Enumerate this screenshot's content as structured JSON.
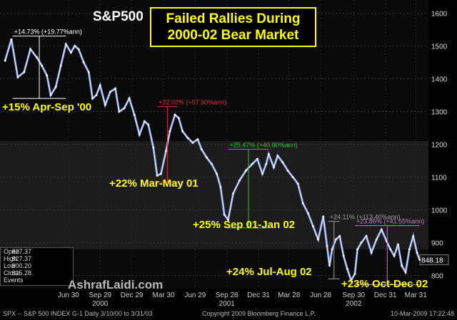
{
  "chart_data": {
    "type": "line",
    "title": "Failed Rallies During 2000-02 Bear Market",
    "title_lines": [
      "Failed Rallies During",
      "2000-02 Bear Market"
    ],
    "index_name": "S&P500",
    "ylim": [
      760,
      1640
    ],
    "yticks": [
      800,
      900,
      1000,
      1100,
      1200,
      1300,
      1400,
      1500,
      1600
    ],
    "last_value": "848.18",
    "x_tick_labels": [
      {
        "t": 0.5,
        "label": "Jun 30"
      },
      {
        "t": 0.75,
        "label": "Sep 29"
      },
      {
        "t": 1.0,
        "label": "Dec 29"
      },
      {
        "t": 1.25,
        "label": "Mar 30"
      },
      {
        "t": 1.5,
        "label": "Jun 29"
      },
      {
        "t": 1.75,
        "label": "Sep 28"
      },
      {
        "t": 2.0,
        "label": "Dec 31"
      },
      {
        "t": 2.24,
        "label": "Mar 28"
      },
      {
        "t": 2.49,
        "label": "Jun 28"
      },
      {
        "t": 2.75,
        "label": "Sep 30"
      },
      {
        "t": 3.0,
        "label": "Dec 31"
      },
      {
        "t": 3.24,
        "label": "Mar 31"
      }
    ],
    "year_labels": [
      {
        "t": 0.75,
        "label": "2000"
      },
      {
        "t": 1.75,
        "label": "2001"
      },
      {
        "t": 2.75,
        "label": "2002"
      }
    ],
    "series": [
      {
        "x": [
          0.0,
          0.05,
          0.1,
          0.15,
          0.2,
          0.25,
          0.29,
          0.33,
          0.36,
          0.4,
          0.44,
          0.48,
          0.52,
          0.55,
          0.58,
          0.62,
          0.66,
          0.69,
          0.72,
          0.75,
          0.79,
          0.83,
          0.87,
          0.9,
          0.94,
          0.98,
          1.02,
          1.06,
          1.1,
          1.13,
          1.17,
          1.2,
          1.23,
          1.27,
          1.3,
          1.34,
          1.37,
          1.4,
          1.44,
          1.48,
          1.52,
          1.55,
          1.59,
          1.63,
          1.67,
          1.7,
          1.73,
          1.76,
          1.8,
          1.85,
          1.9,
          1.95,
          1.99,
          2.03,
          2.06,
          2.08,
          2.12,
          2.15,
          2.19,
          2.23,
          2.27,
          2.31,
          2.35,
          2.39,
          2.43,
          2.47,
          2.51,
          2.54,
          2.56,
          2.58,
          2.61,
          2.64,
          2.67,
          2.7,
          2.73,
          2.76,
          2.78,
          2.81,
          2.85,
          2.89,
          2.93,
          2.97,
          3.01,
          3.04,
          3.07,
          3.1,
          3.13,
          3.16,
          3.19,
          3.22,
          3.25,
          3.27
        ],
        "y": [
          1455,
          1520,
          1405,
          1420,
          1490,
          1465,
          1440,
          1410,
          1350,
          1375,
          1440,
          1505,
          1480,
          1500,
          1490,
          1450,
          1420,
          1340,
          1350,
          1380,
          1320,
          1360,
          1370,
          1300,
          1310,
          1340,
          1290,
          1230,
          1270,
          1260,
          1190,
          1105,
          1110,
          1180,
          1240,
          1290,
          1280,
          1240,
          1220,
          1205,
          1215,
          1185,
          1160,
          1140,
          1110,
          1070,
          985,
          970,
          1050,
          1090,
          1120,
          1140,
          1155,
          1110,
          1140,
          1170,
          1130,
          1165,
          1145,
          1120,
          1100,
          1080,
          1020,
          990,
          950,
          910,
          980,
          890,
          830,
          880,
          910,
          920,
          860,
          820,
          785,
          805,
          880,
          900,
          920,
          870,
          910,
          940,
          905,
          880,
          860,
          895,
          830,
          810,
          880,
          920,
          870,
          848
        ]
      }
    ],
    "rallies": [
      {
        "text": "+15% Apr-Sep '00",
        "pct": "+14.73% (+19.77%ann)",
        "color": "#ffffff",
        "t0": 0.06,
        "t1": 0.48,
        "low": 1340,
        "high": 1530
      },
      {
        "text": "+22% Mar-May 01",
        "pct": "+22.02% (+57.90%ann)",
        "color": "#dd3333",
        "t0": 1.2,
        "t1": 1.36,
        "low": 1085,
        "high": 1315
      },
      {
        "text": "+25% Sep 01-Jan 02",
        "pct": "+25.47% (+40.80%ann)",
        "color": "#22cc22",
        "t0": 1.76,
        "t1": 2.08,
        "low": 945,
        "high": 1185
      },
      {
        "text": "+24% Jul-Aug 02",
        "pct": "+24.11% (+113.40%ann)",
        "color": "#a0a0a0",
        "t0": 2.55,
        "t1": 2.64,
        "low": 790,
        "high": 965
      },
      {
        "text": "+23% Oct-Dec 02",
        "pct": "+23.86% (+41.55%ann)",
        "color": "#c080c0",
        "t0": 2.76,
        "t1": 3.27,
        "low": 772,
        "high": 952
      }
    ]
  },
  "ohlc": {
    "rows": [
      {
        "label": "Open",
        "value": "827.37"
      },
      {
        "label": "High",
        "value": "827.37"
      },
      {
        "label": "Low",
        "value": "800.20"
      },
      {
        "label": "Close",
        "value": "815.28"
      },
      {
        "label": "Events",
        "value": ""
      }
    ]
  },
  "watermark": "AshrafLaidi.com",
  "footer": {
    "left": "SPX -- S&P 500 INDEX   G-1   Daily  3/10/00 to 3/31/03",
    "center": "Copyright 2009 Bloomberg Finance L.P.",
    "right": "10-Mar-2009 17:22:48"
  }
}
